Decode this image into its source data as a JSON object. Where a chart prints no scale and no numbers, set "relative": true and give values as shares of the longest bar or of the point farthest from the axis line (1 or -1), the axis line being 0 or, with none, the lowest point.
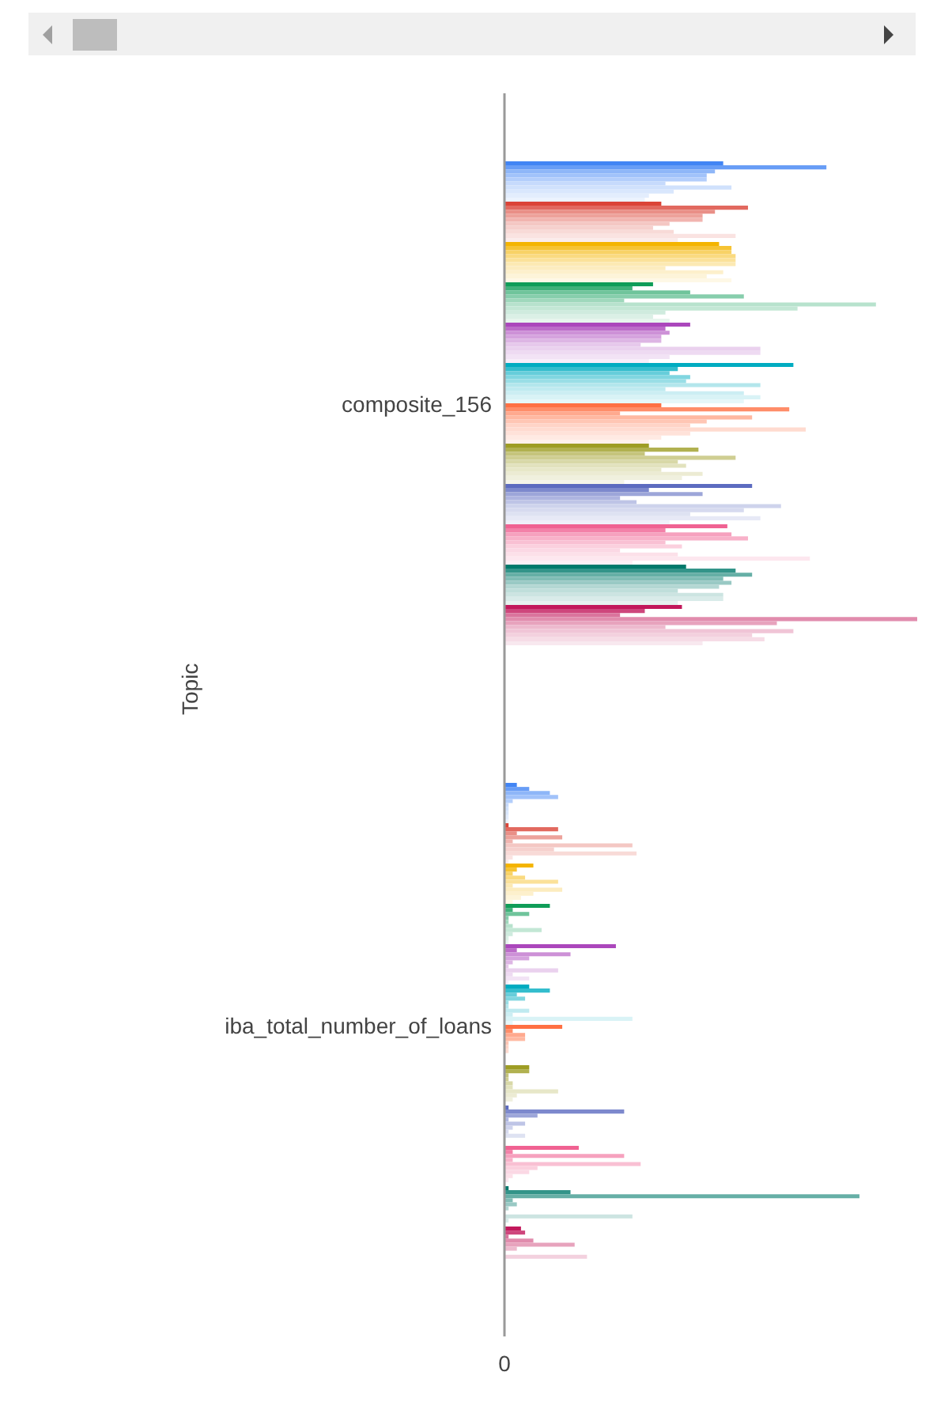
{
  "chart_data": {
    "type": "bar",
    "orientation": "horizontal",
    "relative": true,
    "ylabel": "Topic",
    "categories": [
      "composite_156",
      "iba_total_number_of_loans"
    ],
    "annotations": [
      "0"
    ],
    "grid": false,
    "legend": false,
    "series": [
      {
        "color": "#4285f4",
        "values": [
          0.53,
          0.03
        ]
      },
      {
        "color": "#689df6",
        "values": [
          0.78,
          0.06
        ]
      },
      {
        "color": "#8eb6f8",
        "values": [
          0.51,
          0.11
        ]
      },
      {
        "color": "#a1c2fa",
        "values": [
          0.49,
          0.13
        ]
      },
      {
        "color": "#b3cefb",
        "values": [
          0.49,
          0.02
        ]
      },
      {
        "color": "#c6dafc",
        "values": [
          0.39,
          0.01
        ]
      },
      {
        "color": "#d0e1fc",
        "values": [
          0.55,
          0.01
        ]
      },
      {
        "color": "#d9e7fd",
        "values": [
          0.41,
          0.01
        ]
      },
      {
        "color": "#e3edfd",
        "values": [
          0.35,
          0.01
        ]
      },
      {
        "color": "#ecf3fe",
        "values": [
          0.34,
          0.01
        ]
      },
      {
        "color": "#db4437",
        "values": [
          0.38,
          0.01
        ]
      },
      {
        "color": "#e2695f",
        "values": [
          0.59,
          0.13
        ]
      },
      {
        "color": "#e98f87",
        "values": [
          0.51,
          0.03
        ]
      },
      {
        "color": "#eda29b",
        "values": [
          0.48,
          0.14
        ]
      },
      {
        "color": "#f1b4af",
        "values": [
          0.48,
          0.02
        ]
      },
      {
        "color": "#f4c7c3",
        "values": [
          0.4,
          0.31
        ]
      },
      {
        "color": "#f6d0cd",
        "values": [
          0.36,
          0.12
        ]
      },
      {
        "color": "#f8dad7",
        "values": [
          0.41,
          0.32
        ]
      },
      {
        "color": "#fae3e1",
        "values": [
          0.56,
          0.02
        ]
      },
      {
        "color": "#fbeceb",
        "values": [
          0.42,
          0.01
        ]
      },
      {
        "color": "#f4b400",
        "values": [
          0.52,
          0.07
        ]
      },
      {
        "color": "#f6c333",
        "values": [
          0.55,
          0.03
        ]
      },
      {
        "color": "#f8d266",
        "values": [
          0.55,
          0.02
        ]
      },
      {
        "color": "#fada80",
        "values": [
          0.56,
          0.05
        ]
      },
      {
        "color": "#fbe199",
        "values": [
          0.56,
          0.13
        ]
      },
      {
        "color": "#fce9b3",
        "values": [
          0.56,
          0.02
        ]
      },
      {
        "color": "#fcecbf",
        "values": [
          0.39,
          0.14
        ]
      },
      {
        "color": "#fdf0cc",
        "values": [
          0.53,
          0.07
        ]
      },
      {
        "color": "#fdf4d9",
        "values": [
          0.49,
          0.04
        ]
      },
      {
        "color": "#fef8e6",
        "values": [
          0.55,
          0.02
        ]
      },
      {
        "color": "#0f9d58",
        "values": [
          0.36,
          0.11
        ]
      },
      {
        "color": "#3fb179",
        "values": [
          0.31,
          0.02
        ]
      },
      {
        "color": "#6fc49b",
        "values": [
          0.45,
          0.06
        ]
      },
      {
        "color": "#87ceac",
        "values": [
          0.58,
          0.01
        ]
      },
      {
        "color": "#9fd8bc",
        "values": [
          0.29,
          0.01
        ]
      },
      {
        "color": "#b7e2cd",
        "values": [
          0.9,
          0.02
        ]
      },
      {
        "color": "#c3e7d5",
        "values": [
          0.71,
          0.09
        ]
      },
      {
        "color": "#cfebde",
        "values": [
          0.39,
          0.02
        ]
      },
      {
        "color": "#dbf0e6",
        "values": [
          0.36,
          0.01
        ]
      },
      {
        "color": "#e7f5ee",
        "values": [
          0.4,
          0.01
        ]
      },
      {
        "color": "#ab47bc",
        "values": [
          0.45,
          0.27
        ]
      },
      {
        "color": "#bc6cc9",
        "values": [
          0.39,
          0.03
        ]
      },
      {
        "color": "#cd91d7",
        "values": [
          0.4,
          0.16
        ]
      },
      {
        "color": "#d5a3de",
        "values": [
          0.38,
          0.06
        ]
      },
      {
        "color": "#ddb5e4",
        "values": [
          0.38,
          0.02
        ]
      },
      {
        "color": "#e6c8eb",
        "values": [
          0.33,
          0.01
        ]
      },
      {
        "color": "#ead1ee",
        "values": [
          0.62,
          0.13
        ]
      },
      {
        "color": "#eedaf2",
        "values": [
          0.62,
          0.02
        ]
      },
      {
        "color": "#f2e3f5",
        "values": [
          0.4,
          0.06
        ]
      },
      {
        "color": "#f7edf9",
        "values": [
          0.35,
          0.01
        ]
      },
      {
        "color": "#00acc1",
        "values": [
          0.7,
          0.06
        ]
      },
      {
        "color": "#33bdcd",
        "values": [
          0.42,
          0.11
        ]
      },
      {
        "color": "#66cdda",
        "values": [
          0.4,
          0.03
        ]
      },
      {
        "color": "#80d6e0",
        "values": [
          0.45,
          0.05
        ]
      },
      {
        "color": "#99dee6",
        "values": [
          0.44,
          0.01
        ]
      },
      {
        "color": "#b3e6ec",
        "values": [
          0.62,
          0.01
        ]
      },
      {
        "color": "#bfeaf0",
        "values": [
          0.39,
          0.06
        ]
      },
      {
        "color": "#cceef3",
        "values": [
          0.58,
          0.02
        ]
      },
      {
        "color": "#d9f3f6",
        "values": [
          0.62,
          0.31
        ]
      },
      {
        "color": "#e6f7f9",
        "values": [
          0.58,
          0.02
        ]
      },
      {
        "color": "#ff7043",
        "values": [
          0.38,
          0.14
        ]
      },
      {
        "color": "#ff8d69",
        "values": [
          0.69,
          0.02
        ]
      },
      {
        "color": "#ffa98e",
        "values": [
          0.28,
          0.05
        ]
      },
      {
        "color": "#ffb8a1",
        "values": [
          0.6,
          0.05
        ]
      },
      {
        "color": "#ffc6b4",
        "values": [
          0.49,
          0.01
        ]
      },
      {
        "color": "#ffd4c7",
        "values": [
          0.45,
          0.01
        ]
      },
      {
        "color": "#ffdbd0",
        "values": [
          0.73,
          0.01
        ]
      },
      {
        "color": "#ffe2d9",
        "values": [
          0.45,
          0
        ]
      },
      {
        "color": "#ffeae3",
        "values": [
          0.38,
          0
        ]
      },
      {
        "color": "#fff1ec",
        "values": [
          0.35,
          0
        ]
      },
      {
        "color": "#9e9d24",
        "values": [
          0.35,
          0.06
        ]
      },
      {
        "color": "#b1b150",
        "values": [
          0.47,
          0.06
        ]
      },
      {
        "color": "#c5c47c",
        "values": [
          0.34,
          0.01
        ]
      },
      {
        "color": "#cfce92",
        "values": [
          0.56,
          0.01
        ]
      },
      {
        "color": "#d8d8a7",
        "values": [
          0.42,
          0.02
        ]
      },
      {
        "color": "#e2e2bd",
        "values": [
          0.44,
          0.02
        ]
      },
      {
        "color": "#e7e7c8",
        "values": [
          0.38,
          0.13
        ]
      },
      {
        "color": "#ecebd3",
        "values": [
          0.48,
          0.03
        ]
      },
      {
        "color": "#f0f0de",
        "values": [
          0.43,
          0.02
        ]
      },
      {
        "color": "#f5f5e9",
        "values": [
          0.29,
          0
        ]
      },
      {
        "color": "#5c6bc0",
        "values": [
          0.6,
          0.01
        ]
      },
      {
        "color": "#7d89cd",
        "values": [
          0.35,
          0.29
        ]
      },
      {
        "color": "#9da6d9",
        "values": [
          0.48,
          0.08
        ]
      },
      {
        "color": "#aeb5e0",
        "values": [
          0.28,
          0.01
        ]
      },
      {
        "color": "#bec4e6",
        "values": [
          0.32,
          0.05
        ]
      },
      {
        "color": "#ced3ec",
        "values": [
          0.67,
          0.02
        ]
      },
      {
        "color": "#d6daef",
        "values": [
          0.58,
          0.01
        ]
      },
      {
        "color": "#dee2f2",
        "values": [
          0.45,
          0.05
        ]
      },
      {
        "color": "#e7e9f6",
        "values": [
          0.62,
          0
        ]
      },
      {
        "color": "#eff0f9",
        "values": [
          0.4,
          0
        ]
      },
      {
        "color": "#f06292",
        "values": [
          0.54,
          0.18
        ]
      },
      {
        "color": "#f381a8",
        "values": [
          0.39,
          0.02
        ]
      },
      {
        "color": "#f6a1be",
        "values": [
          0.55,
          0.29
        ]
      },
      {
        "color": "#f8b1c9",
        "values": [
          0.59,
          0.02
        ]
      },
      {
        "color": "#f9c0d3",
        "values": [
          0.39,
          0.33
        ]
      },
      {
        "color": "#fbd0de",
        "values": [
          0.43,
          0.08
        ]
      },
      {
        "color": "#fbd8e4",
        "values": [
          0.28,
          0.06
        ]
      },
      {
        "color": "#fce0e9",
        "values": [
          0.42,
          0.02
        ]
      },
      {
        "color": "#fde7ef",
        "values": [
          0.74,
          0.01
        ]
      },
      {
        "color": "#feeff4",
        "values": [
          0.31,
          0
        ]
      },
      {
        "color": "#00796b",
        "values": [
          0.44,
          0.01
        ]
      },
      {
        "color": "#339489",
        "values": [
          0.56,
          0.16
        ]
      },
      {
        "color": "#66afa6",
        "values": [
          0.6,
          0.86
        ]
      },
      {
        "color": "#80bcb5",
        "values": [
          0.53,
          0.02
        ]
      },
      {
        "color": "#99c9c4",
        "values": [
          0.55,
          0.03
        ]
      },
      {
        "color": "#b3d7d3",
        "values": [
          0.52,
          0.01
        ]
      },
      {
        "color": "#bfdeda",
        "values": [
          0.42,
          0
        ]
      },
      {
        "color": "#cce4e1",
        "values": [
          0.53,
          0.31
        ]
      },
      {
        "color": "#d9ebe9",
        "values": [
          0.53,
          0.01
        ]
      },
      {
        "color": "#e6f2f0",
        "values": [
          0.42,
          0
        ]
      },
      {
        "color": "#c2185b",
        "values": [
          0.43,
          0.04
        ]
      },
      {
        "color": "#ce467c",
        "values": [
          0.34,
          0.05
        ]
      },
      {
        "color": "#da749d",
        "values": [
          0.28,
          0.01
        ]
      },
      {
        "color": "#e18cad",
        "values": [
          1,
          0.07
        ]
      },
      {
        "color": "#e7a3bd",
        "values": [
          0.66,
          0.17
        ]
      },
      {
        "color": "#edbace",
        "values": [
          0.39,
          0.03
        ]
      },
      {
        "color": "#f0c5d6",
        "values": [
          0.7,
          0
        ]
      },
      {
        "color": "#f3d1de",
        "values": [
          0.6,
          0.2
        ]
      },
      {
        "color": "#f6dce6",
        "values": [
          0.63,
          0
        ]
      },
      {
        "color": "#f8e8ef",
        "values": [
          0.48,
          0
        ]
      }
    ]
  }
}
